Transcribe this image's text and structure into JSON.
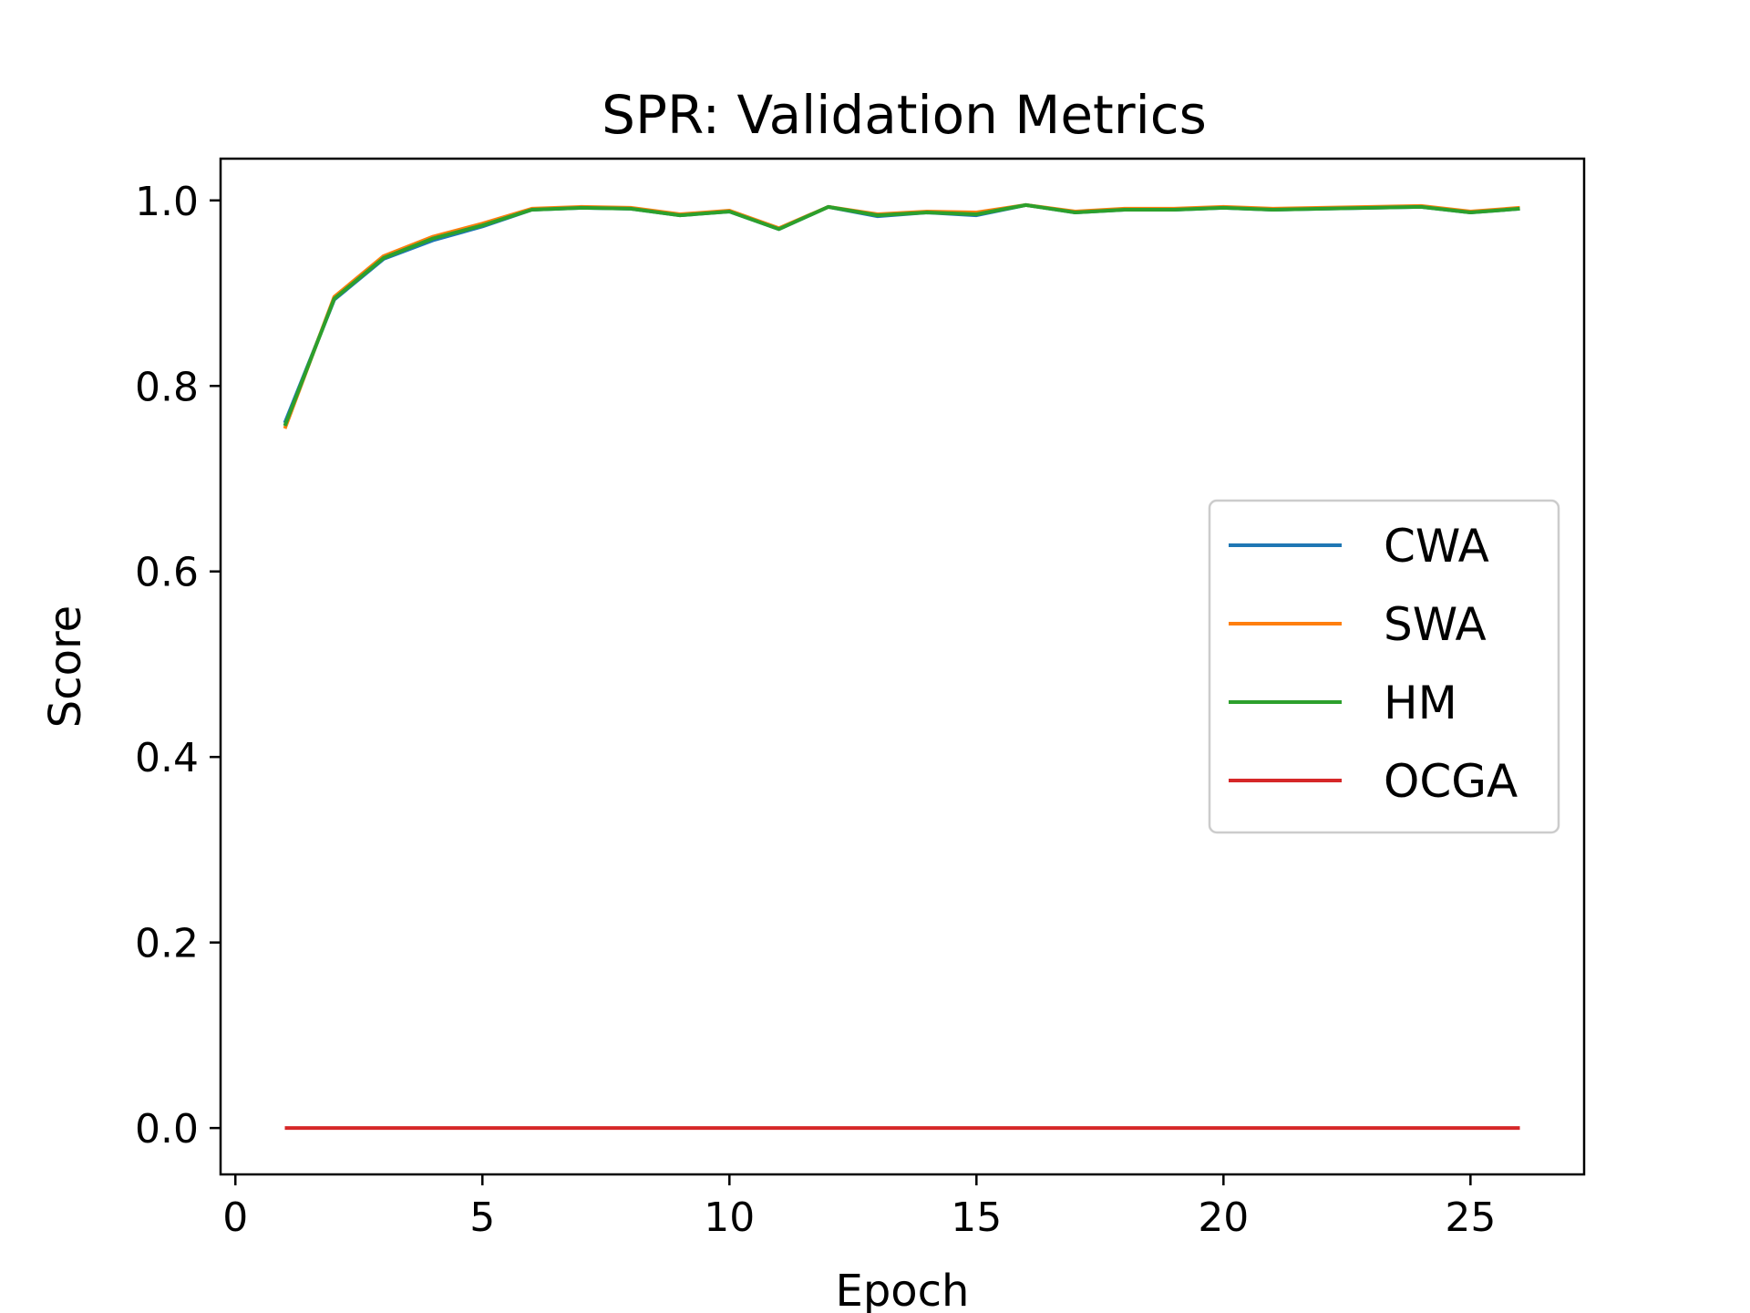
{
  "chart_data": {
    "type": "line",
    "title": "SPR: Validation Metrics",
    "xlabel": "Epoch",
    "ylabel": "Score",
    "xlim": [
      -0.3,
      27.3
    ],
    "ylim": [
      -0.05,
      1.045
    ],
    "xticks": [
      0,
      5,
      10,
      15,
      20,
      25
    ],
    "yticks": [
      0.0,
      0.2,
      0.4,
      0.6,
      0.8,
      1.0
    ],
    "grid": false,
    "legend_position": "center-right",
    "x": [
      1,
      2,
      3,
      4,
      5,
      6,
      7,
      8,
      9,
      10,
      11,
      12,
      13,
      14,
      15,
      16,
      17,
      18,
      19,
      20,
      21,
      22,
      23,
      24,
      25,
      26
    ],
    "series": [
      {
        "name": "CWA",
        "color": "#1f77b4",
        "values": [
          0.76,
          0.893,
          0.937,
          0.957,
          0.972,
          0.99,
          0.992,
          0.991,
          0.984,
          0.988,
          0.969,
          0.993,
          0.983,
          0.987,
          0.984,
          0.995,
          0.987,
          0.99,
          0.99,
          0.992,
          0.99,
          0.991,
          0.992,
          0.993,
          0.987,
          0.991
        ]
      },
      {
        "name": "SWA",
        "color": "#ff7f0e",
        "values": [
          0.754,
          0.896,
          0.94,
          0.961,
          0.975,
          0.991,
          0.993,
          0.992,
          0.985,
          0.989,
          0.97,
          0.993,
          0.985,
          0.988,
          0.987,
          0.995,
          0.988,
          0.991,
          0.991,
          0.993,
          0.991,
          0.992,
          0.993,
          0.994,
          0.988,
          0.992
        ]
      },
      {
        "name": "HM",
        "color": "#2ca02c",
        "values": [
          0.757,
          0.894,
          0.938,
          0.959,
          0.973,
          0.99,
          0.992,
          0.991,
          0.984,
          0.988,
          0.969,
          0.993,
          0.984,
          0.987,
          0.985,
          0.995,
          0.987,
          0.99,
          0.99,
          0.992,
          0.99,
          0.991,
          0.992,
          0.993,
          0.987,
          0.991
        ]
      },
      {
        "name": "OCGA",
        "color": "#d62728",
        "values": [
          0,
          0,
          0,
          0,
          0,
          0,
          0,
          0,
          0,
          0,
          0,
          0,
          0,
          0,
          0,
          0,
          0,
          0,
          0,
          0,
          0,
          0,
          0,
          0,
          0,
          0
        ]
      }
    ]
  }
}
